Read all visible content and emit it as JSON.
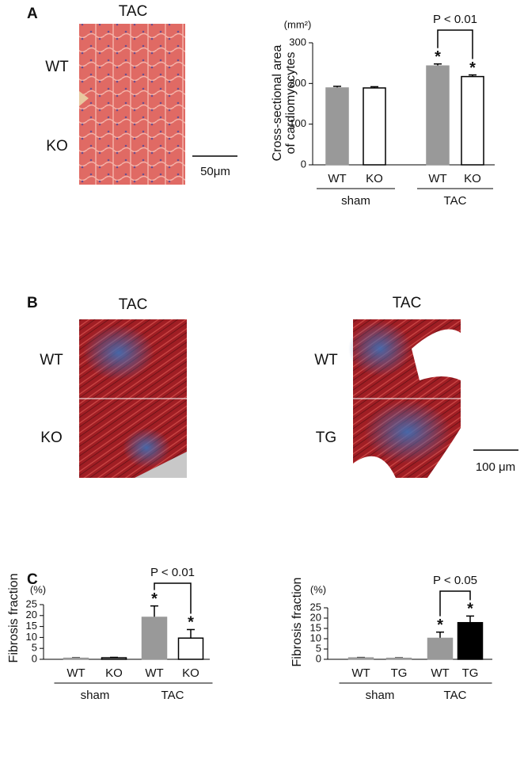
{
  "figure": {
    "panel_labels": [
      "A",
      "B",
      "C"
    ],
    "panel_a": {
      "title": "TAC",
      "rows": [
        "WT",
        "KO"
      ],
      "scale_bar": "50μm"
    },
    "panel_b": {
      "left": {
        "title": "TAC",
        "rows": [
          "WT",
          "KO"
        ]
      },
      "right": {
        "title": "TAC",
        "rows": [
          "WT",
          "TG"
        ]
      },
      "scale_bar": "100 μm"
    }
  },
  "chart_data": [
    {
      "type": "bar",
      "unit_label": "(mm²)",
      "ylabel": [
        "Cross-sectional area",
        "of cardiomyocytes"
      ],
      "categories": [
        "WT",
        "KO",
        "WT",
        "KO"
      ],
      "groups": [
        "sham",
        "TAC"
      ],
      "values": [
        189,
        189,
        243,
        217
      ],
      "errors": [
        4,
        3,
        5,
        4
      ],
      "colors": [
        "#999999",
        "#ffffff",
        "#999999",
        "#ffffff"
      ],
      "significance": [
        null,
        null,
        "*",
        "*"
      ],
      "comparison": "P < 0.01",
      "ylim": [
        0,
        300
      ],
      "yticks": [
        0,
        100,
        200,
        300
      ]
    },
    {
      "type": "bar",
      "unit_label": "(%)",
      "ylabel": [
        "Fibrosis fraction"
      ],
      "categories": [
        "WT",
        "KO",
        "WT",
        "KO"
      ],
      "groups": [
        "sham",
        "TAC"
      ],
      "values": [
        0.5,
        0.7,
        19.2,
        9.7
      ],
      "errors": [
        0.2,
        0.2,
        5.2,
        3.9
      ],
      "colors": [
        "#999999",
        "#ffffff",
        "#999999",
        "#ffffff"
      ],
      "significance": [
        null,
        null,
        "*",
        "*"
      ],
      "comparison": "P < 0.01",
      "ylim": [
        0,
        25
      ],
      "yticks": [
        0,
        5,
        10,
        15,
        20,
        25
      ]
    },
    {
      "type": "bar",
      "unit_label": "(%)",
      "ylabel": [
        "Fibrosis fraction"
      ],
      "categories": [
        "WT",
        "TG",
        "WT",
        "TG"
      ],
      "groups": [
        "sham",
        "TAC"
      ],
      "values": [
        0.7,
        0.5,
        10.2,
        17.8
      ],
      "errors": [
        0.2,
        0.2,
        3.0,
        3.2
      ],
      "colors": [
        "#999999",
        "#999999",
        "#999999",
        "#000000"
      ],
      "significance": [
        null,
        null,
        "*",
        "*"
      ],
      "comparison": "P < 0.05",
      "ylim": [
        0,
        25
      ],
      "yticks": [
        0,
        5,
        10,
        15,
        20,
        25
      ]
    }
  ]
}
